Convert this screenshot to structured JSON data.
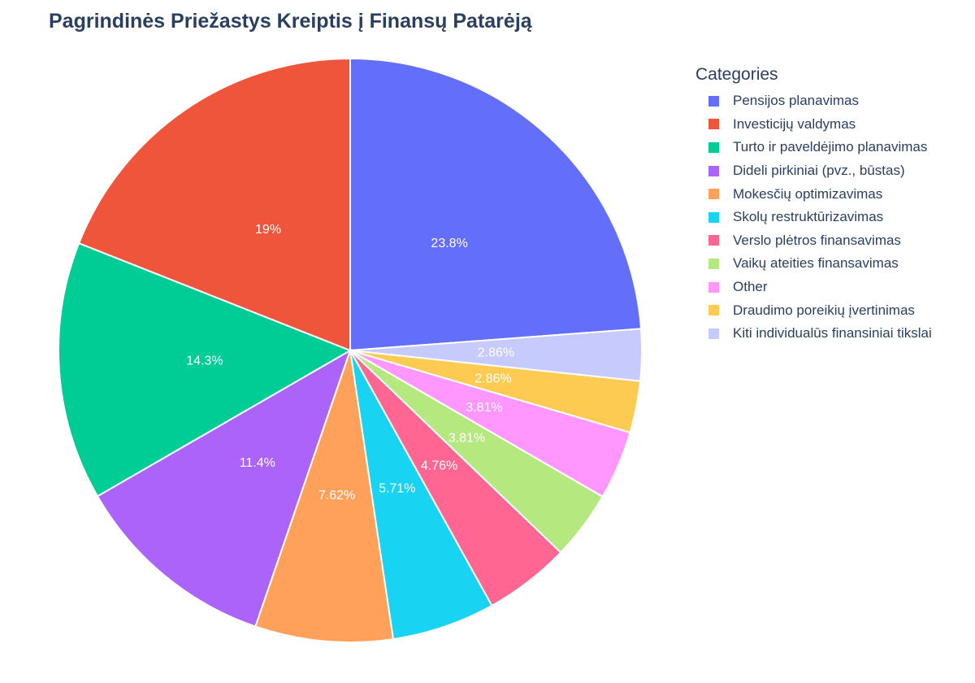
{
  "chart_data": {
    "type": "pie",
    "title": "Pagrindinės Priežastys Kreiptis į Finansų Patarėją",
    "legend_title": "Categories",
    "legend_position": "right",
    "direction": "clockwise",
    "start": "top",
    "slices": [
      {
        "label": "Pensijos planavimas",
        "value": 23.8,
        "text": "23.8%",
        "color": "#636efa"
      },
      {
        "label": "Kiti individualūs finansiniai tikslai",
        "value": 2.86,
        "text": "2.86%",
        "color": "#c6cafc"
      },
      {
        "label": "Draudimo poreikių įvertinimas",
        "value": 2.86,
        "text": "2.86%",
        "color": "#fecb52"
      },
      {
        "label": "Other",
        "value": 3.81,
        "text": "3.81%",
        "color": "#ff97ff"
      },
      {
        "label": "Vaikų ateities finansavimas",
        "value": 3.81,
        "text": "3.81%",
        "color": "#b6e880"
      },
      {
        "label": "Verslo plėtros finansavimas",
        "value": 4.76,
        "text": "4.76%",
        "color": "#ff6692"
      },
      {
        "label": "Skolų restruktūrizavimas",
        "value": 5.71,
        "text": "5.71%",
        "color": "#19d3f3"
      },
      {
        "label": "Mokesčių optimizavimas",
        "value": 7.62,
        "text": "7.62%",
        "color": "#ffa15a"
      },
      {
        "label": "Dideli pirkiniai (pvz., būstas)",
        "value": 11.4,
        "text": "11.4%",
        "color": "#ab63fa"
      },
      {
        "label": "Turto ir paveldėjimo planavimas",
        "value": 14.3,
        "text": "14.3%",
        "color": "#00cc96"
      },
      {
        "label": "Investicijų valdymas",
        "value": 19,
        "text": "19%",
        "color": "#ef553b"
      }
    ],
    "legend_order": [
      "Pensijos planavimas",
      "Investicijų valdymas",
      "Turto ir paveldėjimo planavimas",
      "Dideli pirkiniai (pvz., būstas)",
      "Mokesčių optimizavimas",
      "Skolų restruktūrizavimas",
      "Verslo plėtros finansavimas",
      "Vaikų ateities finansavimas",
      "Other",
      "Draudimo poreikių įvertinimas",
      "Kiti individualūs finansiniai tikslai"
    ]
  }
}
